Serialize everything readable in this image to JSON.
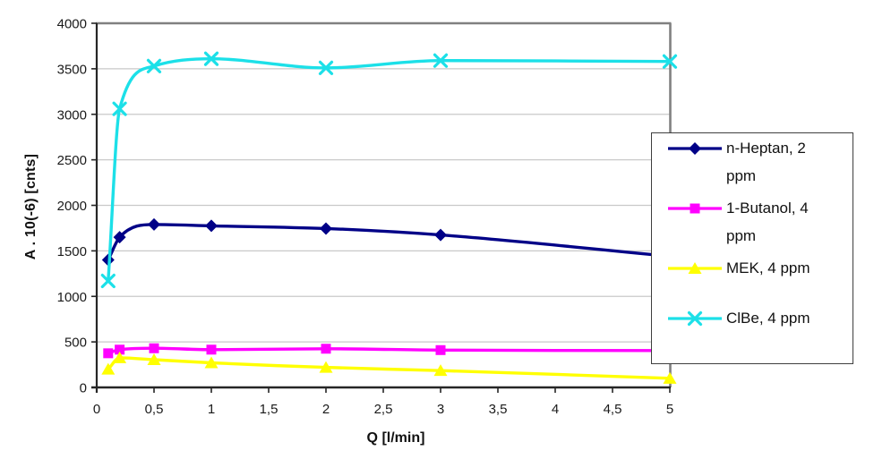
{
  "chart_data": {
    "type": "line",
    "title": "",
    "xlabel": "Q [l/min]",
    "ylabel": "A . 10(-6) [cnts]",
    "xlim": [
      0,
      5
    ],
    "ylim": [
      0,
      4000
    ],
    "x_ticks": [
      0,
      0.5,
      1,
      1.5,
      2,
      2.5,
      3,
      3.5,
      4,
      4.5,
      5
    ],
    "x_tick_labels": [
      "0",
      "0,5",
      "1",
      "1,5",
      "2",
      "2,5",
      "3",
      "3,5",
      "4",
      "4,5",
      "5"
    ],
    "y_ticks": [
      0,
      500,
      1000,
      1500,
      2000,
      2500,
      3000,
      3500,
      4000
    ],
    "y_tick_labels": [
      "0",
      "500",
      "1000",
      "1500",
      "2000",
      "2500",
      "3000",
      "3500",
      "4000"
    ],
    "grid": "horizontal-gridlines",
    "legend_position": "right-overlay",
    "smooth_lines": true,
    "x": [
      0.1,
      0.2,
      0.5,
      1,
      2,
      3,
      5
    ],
    "series": [
      {
        "name": "n-Heptan, 2 ppm",
        "color": "#000087",
        "marker": "diamond",
        "values": [
          1400,
          1650,
          1790,
          1775,
          1745,
          1675,
          1440
        ]
      },
      {
        "name": "1-Butanol, 4 ppm",
        "color": "#FF00FF",
        "marker": "square",
        "values": [
          375,
          415,
          430,
          415,
          425,
          410,
          405
        ]
      },
      {
        "name": "MEK, 4 ppm",
        "color": "#FFFF00",
        "marker": "triangle",
        "values": [
          200,
          325,
          305,
          270,
          220,
          185,
          100
        ]
      },
      {
        "name": "ClBe, 4 ppm",
        "color": "#1CE0E8",
        "marker": "x",
        "values": [
          1170,
          3060,
          3530,
          3610,
          3510,
          3590,
          3580
        ]
      }
    ],
    "colors": {
      "background": "#FFFFFF",
      "gridline": "#C9C9C9",
      "plot_border": "#808080",
      "axis": "#262626",
      "tick_text": "#1A1A1A",
      "legend_border": "#3F3F3F"
    }
  }
}
